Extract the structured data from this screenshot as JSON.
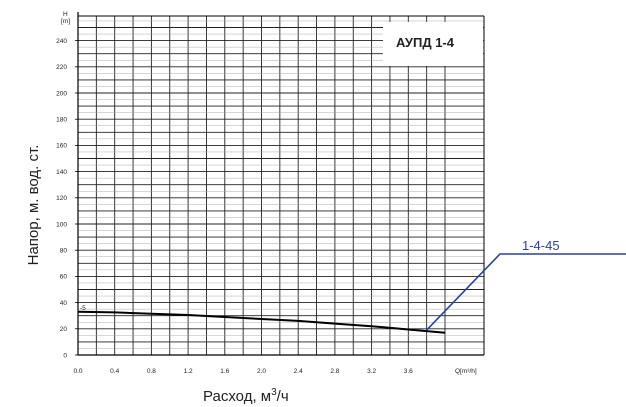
{
  "chart_data": {
    "type": "line",
    "title": "АУПД 1-4",
    "xlabel": "Расход, м³/ч",
    "ylabel": "Напор, м. вод. ст.",
    "x_unit": "Q[m³/h]",
    "y_unit_top": "H",
    "y_unit_bottom": "[m]",
    "xlim": [
      0,
      4.0
    ],
    "ylim": [
      0,
      250
    ],
    "x_ticks": [
      "0.0",
      "0.4",
      "0.8",
      "1.2",
      "1.6",
      "2.0",
      "2.4",
      "2.8",
      "3.2",
      "3.6"
    ],
    "x_tick_values": [
      0.0,
      0.4,
      0.8,
      1.2,
      1.6,
      2.0,
      2.4,
      2.8,
      3.2,
      3.6
    ],
    "y_ticks": [
      "0",
      "20",
      "40",
      "60",
      "80",
      "100",
      "120",
      "140",
      "160",
      "180",
      "200",
      "220",
      "240"
    ],
    "y_tick_values": [
      0,
      20,
      40,
      60,
      80,
      100,
      120,
      140,
      160,
      180,
      200,
      220,
      240
    ],
    "grid": true,
    "series": [
      {
        "name": "1-4-45",
        "color": "#000000",
        "x": [
          0.0,
          0.4,
          0.8,
          1.2,
          1.6,
          2.0,
          2.4,
          2.8,
          3.2,
          3.6,
          4.0
        ],
        "y": [
          33,
          32.5,
          31.5,
          30.5,
          29,
          27.5,
          26,
          24,
          22,
          19.5,
          17
        ]
      }
    ],
    "start_label": "-5",
    "callout": {
      "text": "1-4-45",
      "color": "#2a3f9e",
      "point": [
        3.8,
        19
      ]
    }
  }
}
